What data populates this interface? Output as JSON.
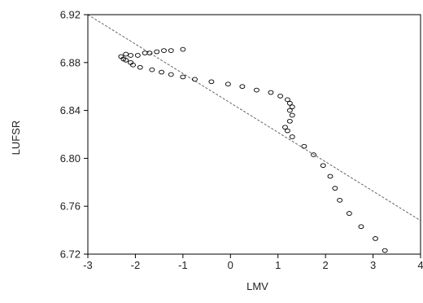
{
  "chart_data": {
    "type": "scatter",
    "xlabel": "LMV",
    "ylabel": "LUFSR",
    "xlim": [
      -3,
      4
    ],
    "ylim": [
      6.72,
      6.92
    ],
    "xticks": [
      -3,
      -2,
      -1,
      0,
      1,
      2,
      3,
      4
    ],
    "yticks": [
      6.72,
      6.76,
      6.8,
      6.84,
      6.88,
      6.92
    ],
    "grid": false,
    "x_tick_labels": [
      "-3",
      "-2",
      "-1",
      "0",
      "1",
      "2",
      "3",
      "4"
    ],
    "y_tick_labels": [
      "6.72",
      "6.76",
      "6.80",
      "6.84",
      "6.88",
      "6.92"
    ],
    "series": [
      {
        "points": [
          [
            -1.0,
            6.891
          ],
          [
            -1.25,
            6.89
          ],
          [
            -1.4,
            6.89
          ],
          [
            -1.55,
            6.889
          ],
          [
            -1.7,
            6.888
          ],
          [
            -1.8,
            6.888
          ],
          [
            -1.95,
            6.886
          ],
          [
            -2.1,
            6.886
          ],
          [
            -2.2,
            6.887
          ],
          [
            -2.3,
            6.885
          ],
          [
            -2.25,
            6.883
          ],
          [
            -2.2,
            6.882
          ],
          [
            -2.1,
            6.88
          ],
          [
            -2.05,
            6.878
          ],
          [
            -1.9,
            6.876
          ],
          [
            -1.65,
            6.874
          ],
          [
            -1.45,
            6.872
          ],
          [
            -1.25,
            6.87
          ],
          [
            -1.0,
            6.868
          ],
          [
            -0.75,
            6.866
          ],
          [
            -0.4,
            6.864
          ],
          [
            -0.05,
            6.862
          ],
          [
            0.25,
            6.86
          ],
          [
            0.55,
            6.857
          ],
          [
            0.85,
            6.855
          ],
          [
            1.05,
            6.852
          ],
          [
            1.2,
            6.849
          ],
          [
            1.25,
            6.846
          ],
          [
            1.3,
            6.843
          ],
          [
            1.25,
            6.84
          ],
          [
            1.3,
            6.836
          ],
          [
            1.25,
            6.831
          ],
          [
            1.15,
            6.826
          ],
          [
            1.2,
            6.823
          ],
          [
            1.3,
            6.818
          ],
          [
            1.55,
            6.81
          ],
          [
            1.75,
            6.803
          ],
          [
            1.95,
            6.794
          ],
          [
            2.1,
            6.785
          ],
          [
            2.2,
            6.775
          ],
          [
            2.3,
            6.765
          ],
          [
            2.5,
            6.754
          ],
          [
            2.75,
            6.743
          ],
          [
            3.05,
            6.733
          ],
          [
            3.25,
            6.723
          ]
        ]
      }
    ],
    "fitted_line": {
      "x": [
        -3,
        4
      ],
      "y": [
        6.92,
        6.748
      ]
    }
  }
}
